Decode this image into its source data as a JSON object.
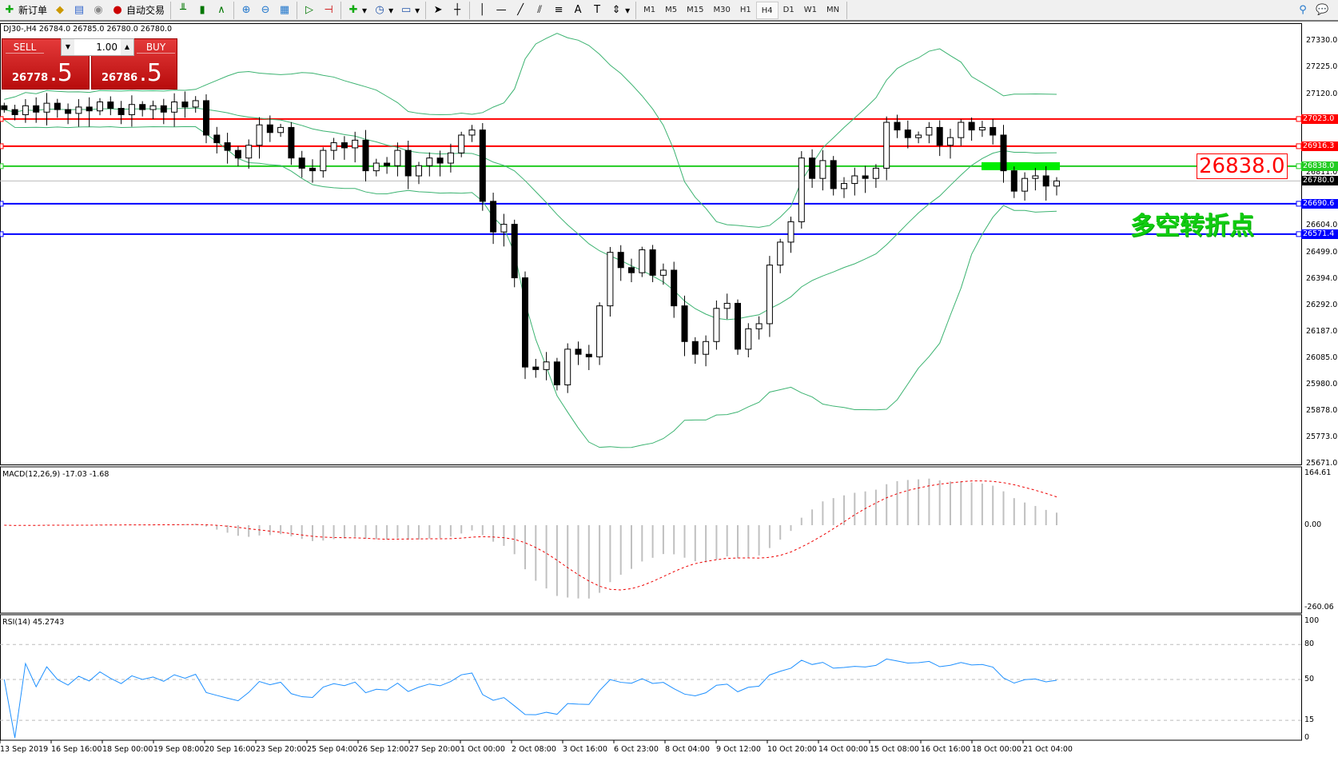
{
  "toolbar": {
    "new_order": "新订单",
    "auto_trading": "自动交易",
    "timeframes": [
      "M1",
      "M5",
      "M15",
      "M30",
      "H1",
      "H4",
      "D1",
      "W1",
      "MN"
    ],
    "active_timeframe": "H4"
  },
  "symbol_info": "DJ30-,H4  26784.0 26785.0 26780.0 26780.0",
  "trade_panel": {
    "sell_label": "SELL",
    "buy_label": "BUY",
    "lot": "1.00",
    "sell_main": "26778",
    "sell_frac": ".5",
    "buy_main": "26786",
    "buy_frac": ".5"
  },
  "price_axis": {
    "ticks": [
      "27330.0",
      "27225.0",
      "27120.0",
      "26811.0",
      "26604.0",
      "26499.0",
      "26394.0",
      "26292.0",
      "26187.0",
      "26085.0",
      "25980.0",
      "25878.0",
      "25773.0",
      "25671.0"
    ],
    "range": [
      25671,
      27330
    ]
  },
  "levels": [
    {
      "value": "27023.0",
      "color": "#ff0000"
    },
    {
      "value": "26916.3",
      "color": "#ff0000"
    },
    {
      "value": "26838.0",
      "color": "#22cc22"
    },
    {
      "value": "26690.6",
      "color": "#0000ff"
    },
    {
      "value": "26571.4",
      "color": "#0000ff"
    }
  ],
  "current_price": "26780.0",
  "annotations": {
    "price_box": "26838.0",
    "turning_point": "多空转折点"
  },
  "macd": {
    "title": "MACD(12,26,9) -17.03 -1.68",
    "ticks": [
      "164.61",
      "0.00",
      "-260.06"
    ]
  },
  "rsi": {
    "title": "RSI(14) 45.2743",
    "ticks": [
      "100",
      "80",
      "50",
      "15",
      "0"
    ]
  },
  "time_axis": [
    "13 Sep 2019",
    "16 Sep 16:00",
    "18 Sep 00:00",
    "19 Sep 08:00",
    "20 Sep 16:00",
    "23 Sep 20:00",
    "25 Sep 04:00",
    "26 Sep 12:00",
    "27 Sep 20:00",
    "1 Oct 00:00",
    "2 Oct 08:00",
    "3 Oct 16:00",
    "6 Oct 23:00",
    "8 Oct 04:00",
    "9 Oct 12:00",
    "10 Oct 20:00",
    "14 Oct 00:00",
    "15 Oct 08:00",
    "16 Oct 16:00",
    "18 Oct 00:00",
    "21 Oct 04:00"
  ],
  "chart_data": {
    "type": "candlestick",
    "symbol": "DJ30-",
    "timeframe": "H4",
    "closes": [
      27060,
      27040,
      27075,
      27050,
      27085,
      27060,
      27045,
      27070,
      27055,
      27090,
      27065,
      27040,
      27080,
      27060,
      27075,
      27050,
      27090,
      27070,
      27095,
      26960,
      26930,
      26900,
      26870,
      26920,
      27000,
      26970,
      26990,
      26870,
      26830,
      26820,
      26900,
      26930,
      26910,
      26940,
      26820,
      26850,
      26840,
      26900,
      26800,
      26840,
      26870,
      26850,
      26890,
      26960,
      26980,
      26700,
      26580,
      26610,
      26400,
      26050,
      26040,
      26070,
      25980,
      26120,
      26100,
      26090,
      26290,
      26500,
      26440,
      26420,
      26510,
      26410,
      26430,
      26290,
      26150,
      26100,
      26150,
      26280,
      26300,
      26120,
      26200,
      26220,
      26450,
      26540,
      26620,
      26870,
      26790,
      26860,
      26750,
      26770,
      26800,
      26790,
      26830,
      27010,
      26980,
      26950,
      26960,
      26990,
      26920,
      26950,
      27010,
      26980,
      26990,
      26960,
      26820,
      26740,
      26790,
      26800,
      26760,
      26780
    ],
    "indicators": [
      "Bollinger Bands",
      "MACD(12,26,9)",
      "RSI(14)"
    ]
  }
}
